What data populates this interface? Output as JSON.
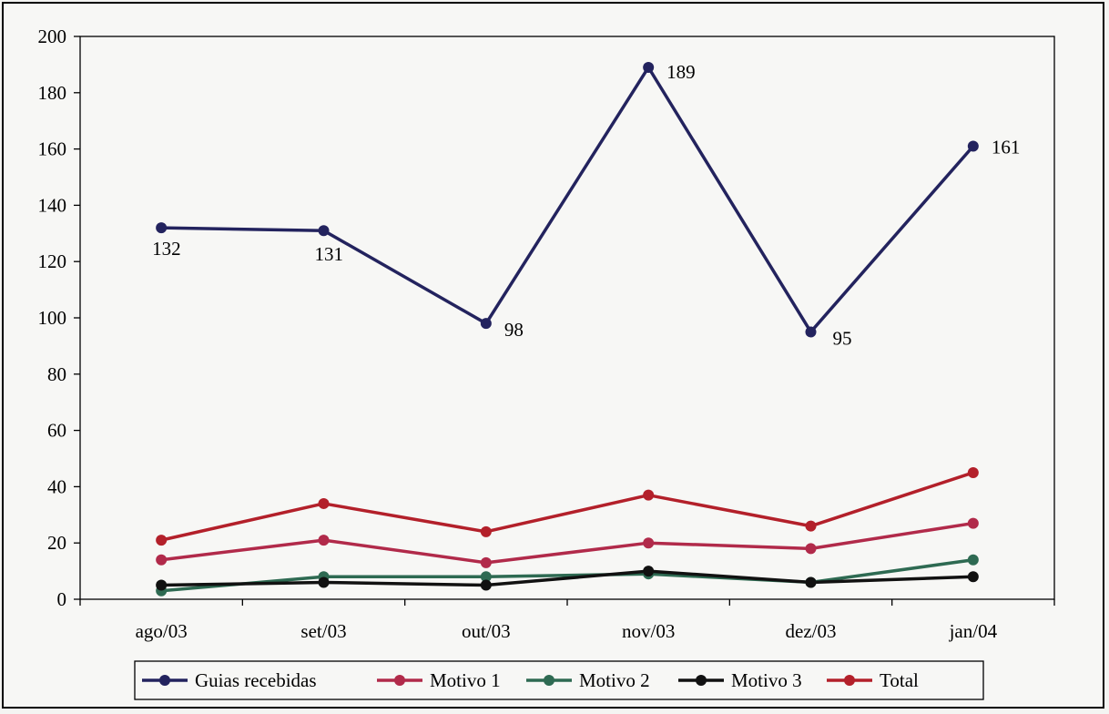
{
  "chart_data": {
    "type": "line",
    "categories": [
      "ago/03",
      "set/03",
      "out/03",
      "nov/03",
      "dez/03",
      "jan/04"
    ],
    "ylim": [
      0,
      200
    ],
    "yticks": [
      0,
      20,
      40,
      60,
      80,
      100,
      120,
      140,
      160,
      180,
      200
    ],
    "grid": false,
    "legend_position": "bottom",
    "series": [
      {
        "name": "Guias recebidas",
        "color": "#23235e",
        "values": [
          132,
          131,
          98,
          189,
          95,
          161
        ],
        "labels": [
          "132",
          "131",
          "98",
          "189",
          "95",
          "161"
        ]
      },
      {
        "name": "Motivo 1",
        "color": "#b12a4a",
        "values": [
          14,
          21,
          13,
          20,
          18,
          27
        ]
      },
      {
        "name": "Motivo 2",
        "color": "#2e6a52",
        "values": [
          3,
          8,
          8,
          9,
          6,
          14
        ]
      },
      {
        "name": "Motivo 3",
        "color": "#111111",
        "values": [
          5,
          6,
          5,
          10,
          6,
          8
        ]
      },
      {
        "name": "Total",
        "color": "#b3202a",
        "values": [
          21,
          34,
          24,
          37,
          26,
          45
        ]
      }
    ]
  }
}
